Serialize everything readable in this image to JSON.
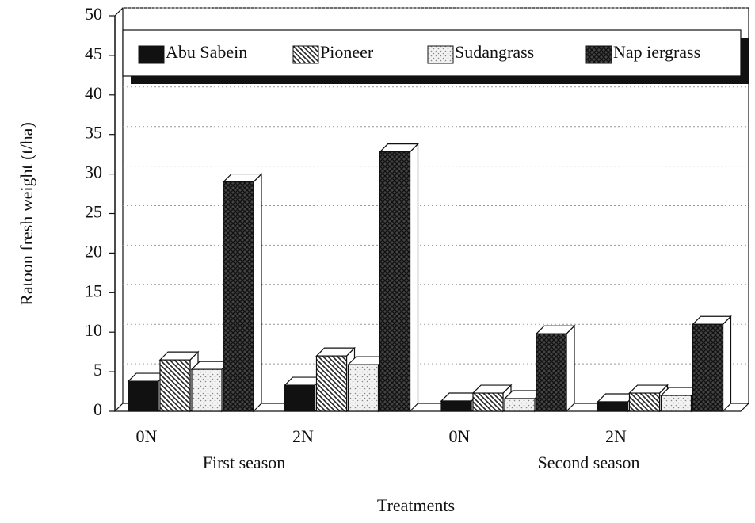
{
  "chart_data": {
    "type": "bar3d",
    "ylabel": "Ratoon fresh weight (t/ha)",
    "xlabel": "Treatments",
    "categories": [
      "0N",
      "2N",
      "0N",
      "2N"
    ],
    "group_labels": [
      "First season",
      "Second season"
    ],
    "series": [
      {
        "name": "Abu Sabein",
        "color": "#111111",
        "values": [
          3.8,
          3.3,
          1.3,
          1.2
        ]
      },
      {
        "name": "Pioneer",
        "color": "#222222",
        "values": [
          6.5,
          7.0,
          2.3,
          2.3
        ]
      },
      {
        "name": "Sudangrass",
        "color": "#888888",
        "values": [
          5.3,
          5.9,
          1.6,
          2.0
        ]
      },
      {
        "name": "Nap iergrass",
        "color": "#444444",
        "values": [
          29,
          32.8,
          9.8,
          11.0
        ]
      }
    ],
    "ylim": [
      0,
      50
    ],
    "yticks": [
      0,
      5,
      10,
      15,
      20,
      25,
      30,
      35,
      40,
      45,
      50
    ],
    "grid": true
  }
}
